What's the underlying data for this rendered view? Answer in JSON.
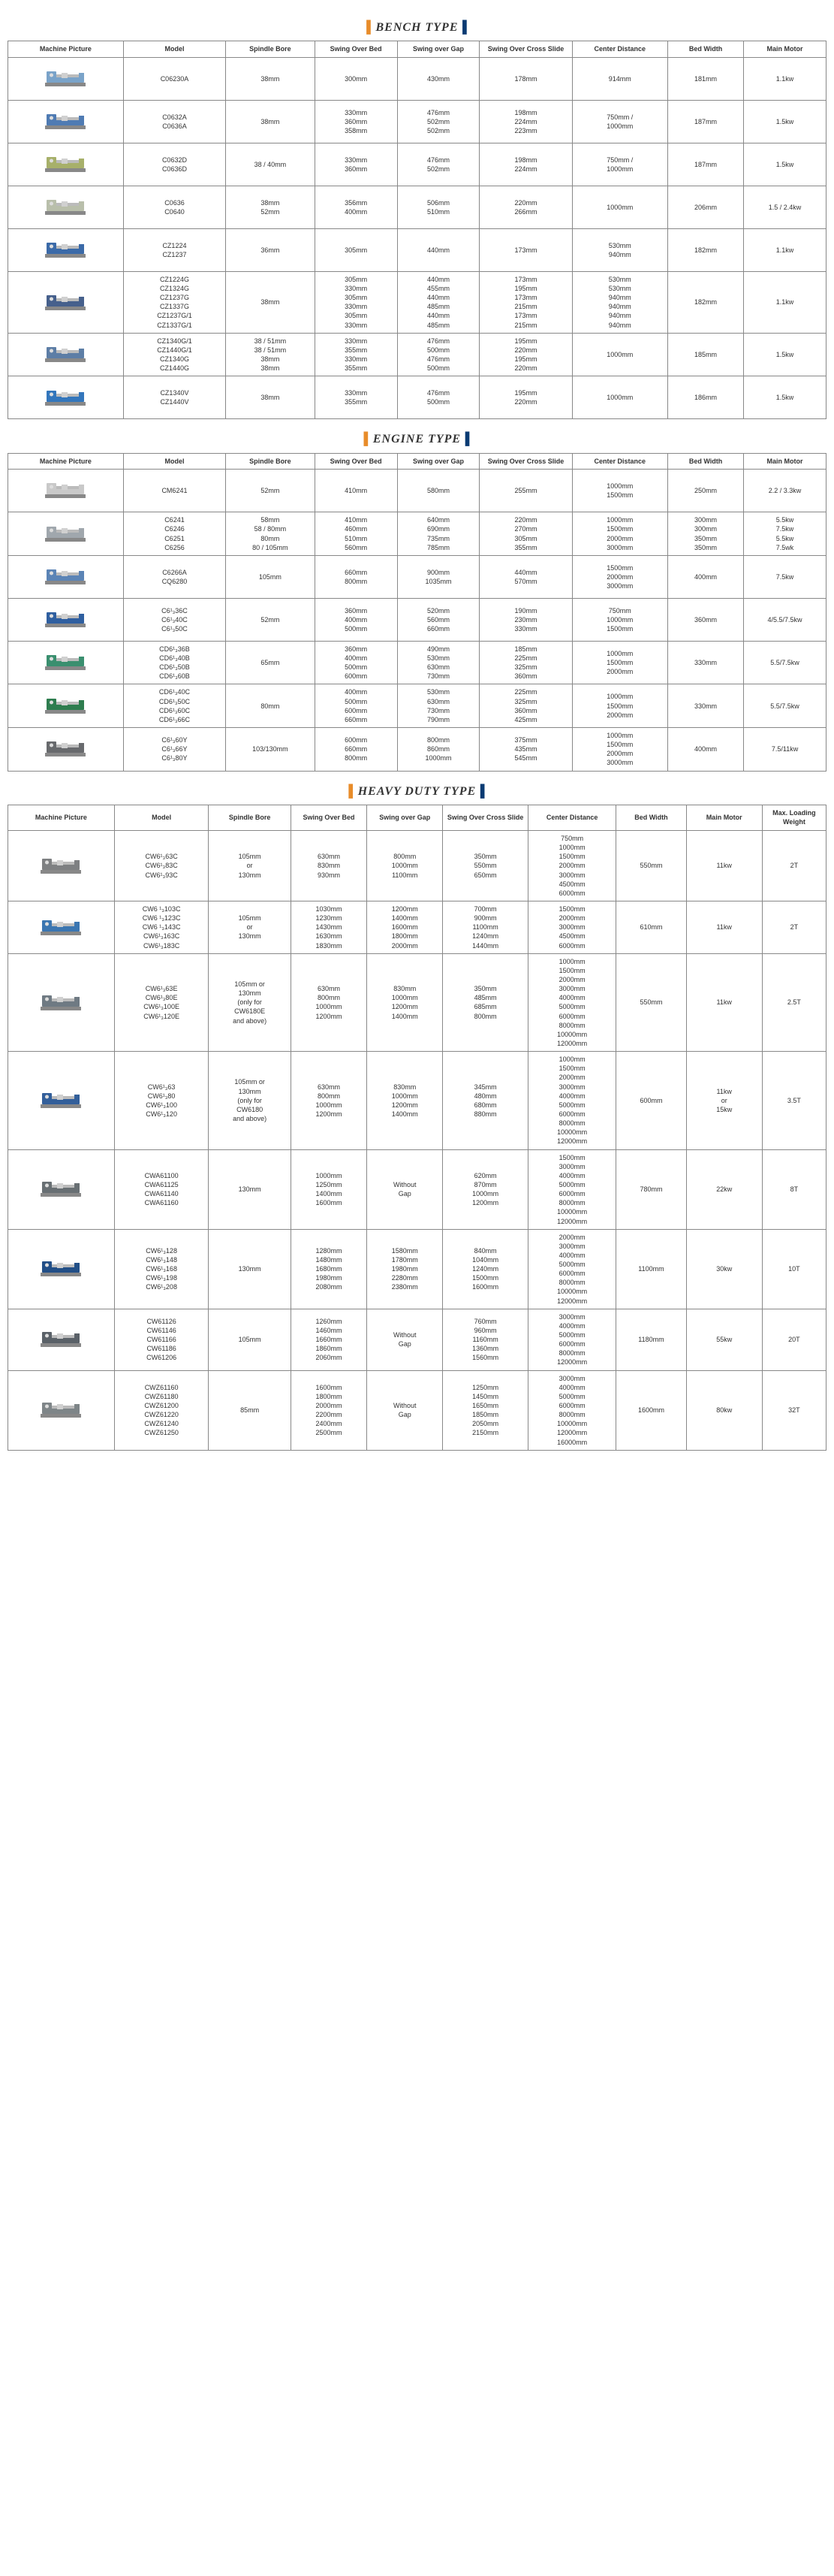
{
  "brackets": {
    "left": "#e88c2a",
    "right": "#0a3b73"
  },
  "headers": [
    "Machine Picture",
    "Model",
    "Spindle Bore",
    "Swing Over Bed",
    "Swing over Gap",
    "Swing Over Cross Slide",
    "Center Distance",
    "Bed Width",
    "Main Motor"
  ],
  "hd_extra_header": "Max. Loading Weight",
  "sections": [
    {
      "title": "BENCH TYPE",
      "rows": [
        {
          "color": "#7aa3c9",
          "model": [
            "C06230A"
          ],
          "bore": [
            "38mm"
          ],
          "sob": [
            "300mm"
          ],
          "sog": [
            "430mm"
          ],
          "socs": [
            "178mm"
          ],
          "cd": [
            "914mm"
          ],
          "bw": [
            "181mm"
          ],
          "mm": [
            "1.1kw"
          ]
        },
        {
          "color": "#4f7bb3",
          "model": [
            "C0632A",
            "C0636A"
          ],
          "bore": [
            "38mm"
          ],
          "sob": [
            "330mm",
            "360mm",
            "358mm"
          ],
          "sog": [
            "476mm",
            "502mm",
            "502mm"
          ],
          "socs": [
            "198mm",
            "224mm",
            "223mm"
          ],
          "cd": [
            "750mm /",
            "1000mm"
          ],
          "bw": [
            "187mm"
          ],
          "mm": [
            "1.5kw"
          ]
        },
        {
          "color": "#a7b06a",
          "model": [
            "C0632D",
            "C0636D"
          ],
          "bore": [
            "38 / 40mm"
          ],
          "sob": [
            "330mm",
            "360mm"
          ],
          "sog": [
            "476mm",
            "502mm"
          ],
          "socs": [
            "198mm",
            "224mm"
          ],
          "cd": [
            "750mm /",
            "1000mm"
          ],
          "bw": [
            "187mm"
          ],
          "mm": [
            "1.5kw"
          ]
        },
        {
          "color": "#b9bfab",
          "model": [
            "C0636",
            "C0640"
          ],
          "bore": [
            "38mm",
            "52mm"
          ],
          "sob": [
            "356mm",
            "400mm"
          ],
          "sog": [
            "506mm",
            "510mm"
          ],
          "socs": [
            "220mm",
            "266mm"
          ],
          "cd": [
            "1000mm"
          ],
          "bw": [
            "206mm"
          ],
          "mm": [
            "1.5 / 2.4kw"
          ]
        },
        {
          "color": "#3b6aa8",
          "model": [
            "CZ1224",
            "CZ1237"
          ],
          "bore": [
            "36mm"
          ],
          "sob": [
            "305mm"
          ],
          "sog": [
            "440mm"
          ],
          "socs": [
            "173mm"
          ],
          "cd": [
            "530mm",
            "940mm"
          ],
          "bw": [
            "182mm"
          ],
          "mm": [
            "1.1kw"
          ]
        },
        {
          "color": "#46608c",
          "model": [
            "CZ1224G",
            "CZ1324G",
            "CZ1237G",
            "CZ1337G",
            "CZ1237G/1",
            "CZ1337G/1"
          ],
          "bore": [
            "38mm"
          ],
          "sob": [
            "305mm",
            "330mm",
            "305mm",
            "330mm",
            "305mm",
            "330mm"
          ],
          "sog": [
            "440mm",
            "455mm",
            "440mm",
            "485mm",
            "440mm",
            "485mm"
          ],
          "socs": [
            "173mm",
            "195mm",
            "173mm",
            "215mm",
            "173mm",
            "215mm"
          ],
          "cd": [
            "530mm",
            "530mm",
            "940mm",
            "940mm",
            "940mm",
            "940mm"
          ],
          "bw": [
            "182mm"
          ],
          "mm": [
            "1.1kw"
          ]
        },
        {
          "color": "#5d7ea6",
          "model": [
            "CZ1340G/1",
            "CZ1440G/1",
            "CZ1340G",
            "CZ1440G"
          ],
          "bore": [
            "38 / 51mm",
            "38 / 51mm",
            "38mm",
            "38mm"
          ],
          "sob": [
            "330mm",
            "355mm",
            "330mm",
            "355mm"
          ],
          "sog": [
            "476mm",
            "500mm",
            "476mm",
            "500mm"
          ],
          "socs": [
            "195mm",
            "220mm",
            "195mm",
            "220mm"
          ],
          "cd": [
            "1000mm"
          ],
          "bw": [
            "185mm"
          ],
          "mm": [
            "1.5kw"
          ]
        },
        {
          "color": "#3376bc",
          "model": [
            "CZ1340V",
            "CZ1440V"
          ],
          "bore": [
            "38mm"
          ],
          "sob": [
            "330mm",
            "355mm"
          ],
          "sog": [
            "476mm",
            "500mm"
          ],
          "socs": [
            "195mm",
            "220mm"
          ],
          "cd": [
            "1000mm"
          ],
          "bw": [
            "186mm"
          ],
          "mm": [
            "1.5kw"
          ]
        }
      ]
    },
    {
      "title": "ENGINE TYPE",
      "rows": [
        {
          "color": "#c9c9c9",
          "model": [
            "CM6241"
          ],
          "bore": [
            "52mm"
          ],
          "sob": [
            "410mm"
          ],
          "sog": [
            "580mm"
          ],
          "socs": [
            "255mm"
          ],
          "cd": [
            "1000mm",
            "1500mm"
          ],
          "bw": [
            "250mm"
          ],
          "mm": [
            "2.2 / 3.3kw"
          ]
        },
        {
          "color": "#a0a7ad",
          "model": [
            "C6241",
            "C6246",
            "C6251",
            "C6256"
          ],
          "bore": [
            "58mm",
            "58 / 80mm",
            "80mm",
            "80 / 105mm"
          ],
          "sob": [
            "410mm",
            "460mm",
            "510mm",
            "560mm"
          ],
          "sog": [
            "640mm",
            "690mm",
            "735mm",
            "785mm"
          ],
          "socs": [
            "220mm",
            "270mm",
            "305mm",
            "355mm"
          ],
          "cd": [
            "1000mm",
            "1500mm",
            "2000mm",
            "3000mm"
          ],
          "bw": [
            "300mm",
            "300mm",
            "350mm",
            "350mm"
          ],
          "mm": [
            "5.5kw",
            "7.5kw",
            "5.5kw",
            "7.5wk"
          ]
        },
        {
          "color": "#5b84b6",
          "model": [
            "C6266A",
            "CQ6280"
          ],
          "bore": [
            "105mm"
          ],
          "sob": [
            "660mm",
            "800mm"
          ],
          "sog": [
            "900mm",
            "1035mm"
          ],
          "socs": [
            "440mm",
            "570mm"
          ],
          "cd": [
            "1500mm",
            "2000mm",
            "3000mm"
          ],
          "bw": [
            "400mm"
          ],
          "mm": [
            "7.5kw"
          ]
        },
        {
          "color": "#2f5fa0",
          "model": [
            "C6¹₃36C",
            "C6¹₃40C",
            "C6¹₃50C"
          ],
          "bore": [
            "52mm"
          ],
          "sob": [
            "360mm",
            "400mm",
            "500mm"
          ],
          "sog": [
            "520mm",
            "560mm",
            "660mm"
          ],
          "socs": [
            "190mm",
            "230mm",
            "330mm"
          ],
          "cd": [
            "750mm",
            "1000mm",
            "1500mm"
          ],
          "bw": [
            "360mm"
          ],
          "mm": [
            "4/5.5/7.5kw"
          ]
        },
        {
          "color": "#3a8f6f",
          "model": [
            "CD6¹₃36B",
            "CD6¹₃40B",
            "CD6¹₃50B",
            "CD6¹₃60B"
          ],
          "bore": [
            "65mm"
          ],
          "sob": [
            "360mm",
            "400mm",
            "500mm",
            "600mm"
          ],
          "sog": [
            "490mm",
            "530mm",
            "630mm",
            "730mm"
          ],
          "socs": [
            "185mm",
            "225mm",
            "325mm",
            "360mm"
          ],
          "cd": [
            "1000mm",
            "1500mm",
            "2000mm"
          ],
          "bw": [
            "330mm"
          ],
          "mm": [
            "5.5/7.5kw"
          ]
        },
        {
          "color": "#2e7d4f",
          "model": [
            "CD6¹₃40C",
            "CD6¹₃50C",
            "CD6¹₃60C",
            "CD6¹₃66C"
          ],
          "bore": [
            "80mm"
          ],
          "sob": [
            "400mm",
            "500mm",
            "600mm",
            "660mm"
          ],
          "sog": [
            "530mm",
            "630mm",
            "730mm",
            "790mm"
          ],
          "socs": [
            "225mm",
            "325mm",
            "360mm",
            "425mm"
          ],
          "cd": [
            "1000mm",
            "1500mm",
            "2000mm"
          ],
          "bw": [
            "330mm"
          ],
          "mm": [
            "5.5/7.5kw"
          ]
        },
        {
          "color": "#686a6d",
          "model": [
            "C6¹₃60Y",
            "C6¹₃66Y",
            "C6¹₃80Y"
          ],
          "bore": [
            "103/130mm"
          ],
          "sob": [
            "600mm",
            "660mm",
            "800mm"
          ],
          "sog": [
            "800mm",
            "860mm",
            "1000mm"
          ],
          "socs": [
            "375mm",
            "435mm",
            "545mm"
          ],
          "cd": [
            "1000mm",
            "1500mm",
            "2000mm",
            "3000mm"
          ],
          "bw": [
            "400mm"
          ],
          "mm": [
            "7.5/11kw"
          ]
        }
      ]
    },
    {
      "title": "HEAVY DUTY TYPE",
      "extra": true,
      "rows": [
        {
          "color": "#7e8082",
          "model": [
            "CW6¹₃63C",
            "CW6¹₃83C",
            "CW6¹₃93C"
          ],
          "bore": [
            "105mm",
            "or",
            "130mm"
          ],
          "sob": [
            "630mm",
            "830mm",
            "930mm"
          ],
          "sog": [
            "800mm",
            "1000mm",
            "1100mm"
          ],
          "socs": [
            "350mm",
            "550mm",
            "650mm"
          ],
          "cd": [
            "750mm",
            "1000mm",
            "1500mm",
            "2000mm",
            "3000mm",
            "4500mm",
            "6000mm"
          ],
          "bw": [
            "550mm"
          ],
          "mm": [
            "11kw"
          ],
          "mlw": [
            "2T"
          ]
        },
        {
          "color": "#3b76b1",
          "model": [
            "CW6 ¹₃103C",
            "CW6 ¹₃123C",
            "CW6 ¹₃143C",
            "CW6¹₃163C",
            "CW6¹₃183C"
          ],
          "bore": [
            "105mm",
            "or",
            "130mm"
          ],
          "sob": [
            "1030mm",
            "1230mm",
            "1430mm",
            "1630mm",
            "1830mm"
          ],
          "sog": [
            "1200mm",
            "1400mm",
            "1600mm",
            "1800mm",
            "2000mm"
          ],
          "socs": [
            "700mm",
            "900mm",
            "1100mm",
            "1240mm",
            "1440mm"
          ],
          "cd": [
            "1500mm",
            "2000mm",
            "3000mm",
            "4500mm",
            "6000mm"
          ],
          "bw": [
            "610mm"
          ],
          "mm": [
            "11kw"
          ],
          "mlw": [
            "2T"
          ]
        },
        {
          "color": "#6f7a83",
          "model": [
            "CW6¹₃63E",
            "CW6¹₃80E",
            "CW6¹₃100E",
            "CW6¹₃120E"
          ],
          "bore": [
            "105mm or",
            "130mm",
            "(only for",
            "CW6180E",
            "and above)"
          ],
          "sob": [
            "630mm",
            "800mm",
            "1000mm",
            "1200mm"
          ],
          "sog": [
            "830mm",
            "1000mm",
            "1200mm",
            "1400mm"
          ],
          "socs": [
            "350mm",
            "485mm",
            "685mm",
            "800mm"
          ],
          "cd": [
            "1000mm",
            "1500mm",
            "2000mm",
            "3000mm",
            "4000mm",
            "5000mm",
            "6000mm",
            "8000mm",
            "10000mm",
            "12000mm"
          ],
          "bw": [
            "550mm"
          ],
          "mm": [
            "11kw"
          ],
          "mlw": [
            "2.5T"
          ]
        },
        {
          "color": "#335f9a",
          "model": [
            "CW6¹₃63",
            "CW6¹₃80",
            "CW6¹₃100",
            "CW6¹₃120"
          ],
          "bore": [
            "105mm or",
            "130mm",
            "(only for",
            "CW6180",
            "and above)"
          ],
          "sob": [
            "630mm",
            "800mm",
            "1000mm",
            "1200mm"
          ],
          "sog": [
            "830mm",
            "1000mm",
            "1200mm",
            "1400mm"
          ],
          "socs": [
            "345mm",
            "480mm",
            "680mm",
            "880mm"
          ],
          "cd": [
            "1000mm",
            "1500mm",
            "2000mm",
            "3000mm",
            "4000mm",
            "5000mm",
            "6000mm",
            "8000mm",
            "10000mm",
            "12000mm"
          ],
          "bw": [
            "600mm"
          ],
          "mm": [
            "11kw",
            "or",
            "15kw"
          ],
          "mlw": [
            "3.5T"
          ]
        },
        {
          "color": "#686f73",
          "model": [
            "CWA61100",
            "CWA61125",
            "CWA61140",
            "CWA61160"
          ],
          "bore": [
            "130mm"
          ],
          "sob": [
            "1000mm",
            "1250mm",
            "1400mm",
            "1600mm"
          ],
          "sog": [
            "Without",
            "Gap"
          ],
          "socs": [
            "620mm",
            "870mm",
            "1000mm",
            "1200mm"
          ],
          "cd": [
            "1500mm",
            "3000mm",
            "4000mm",
            "5000mm",
            "6000mm",
            "8000mm",
            "10000mm",
            "12000mm"
          ],
          "bw": [
            "780mm"
          ],
          "mm": [
            "22kw"
          ],
          "mlw": [
            "8T"
          ]
        },
        {
          "color": "#224f87",
          "model": [
            "CW6¹₃128",
            "CW6¹₃148",
            "CW6¹₃168",
            "CW6¹₃198",
            "CW6¹₃208"
          ],
          "bore": [
            "130mm"
          ],
          "sob": [
            "1280mm",
            "1480mm",
            "1680mm",
            "1980mm",
            "2080mm"
          ],
          "sog": [
            "1580mm",
            "1780mm",
            "1980mm",
            "2280mm",
            "2380mm"
          ],
          "socs": [
            "840mm",
            "1040mm",
            "1240mm",
            "1500mm",
            "1600mm"
          ],
          "cd": [
            "2000mm",
            "3000mm",
            "4000mm",
            "5000mm",
            "6000mm",
            "8000mm",
            "10000mm",
            "12000mm"
          ],
          "bw": [
            "1100mm"
          ],
          "mm": [
            "30kw"
          ],
          "mlw": [
            "10T"
          ]
        },
        {
          "color": "#5a6168",
          "model": [
            "CW61126",
            "CW61146",
            "CW61166",
            "CW61186",
            "CW61206"
          ],
          "bore": [
            "105mm"
          ],
          "sob": [
            "1260mm",
            "1460mm",
            "1660mm",
            "1860mm",
            "2060mm"
          ],
          "sog": [
            "Without",
            "Gap"
          ],
          "socs": [
            "760mm",
            "960mm",
            "1160mm",
            "1360mm",
            "1560mm"
          ],
          "cd": [
            "3000mm",
            "4000mm",
            "5000mm",
            "6000mm",
            "8000mm",
            "12000mm"
          ],
          "bw": [
            "1180mm"
          ],
          "mm": [
            "55kw"
          ],
          "mlw": [
            "20T"
          ]
        },
        {
          "color": "#7e8588",
          "model": [
            "CWZ61160",
            "CWZ61180",
            "CWZ61200",
            "CWZ61220",
            "CWZ61240",
            "CWZ61250"
          ],
          "bore": [
            "85mm"
          ],
          "sob": [
            "1600mm",
            "1800mm",
            "2000mm",
            "2200mm",
            "2400mm",
            "2500mm"
          ],
          "sog": [
            "Without",
            "Gap"
          ],
          "socs": [
            "1250mm",
            "1450mm",
            "1650mm",
            "1850mm",
            "2050mm",
            "2150mm"
          ],
          "cd": [
            "3000mm",
            "4000mm",
            "5000mm",
            "6000mm",
            "8000mm",
            "10000mm",
            "12000mm",
            "16000mm"
          ],
          "bw": [
            "1600mm"
          ],
          "mm": [
            "80kw"
          ],
          "mlw": [
            "32T"
          ]
        }
      ]
    }
  ]
}
